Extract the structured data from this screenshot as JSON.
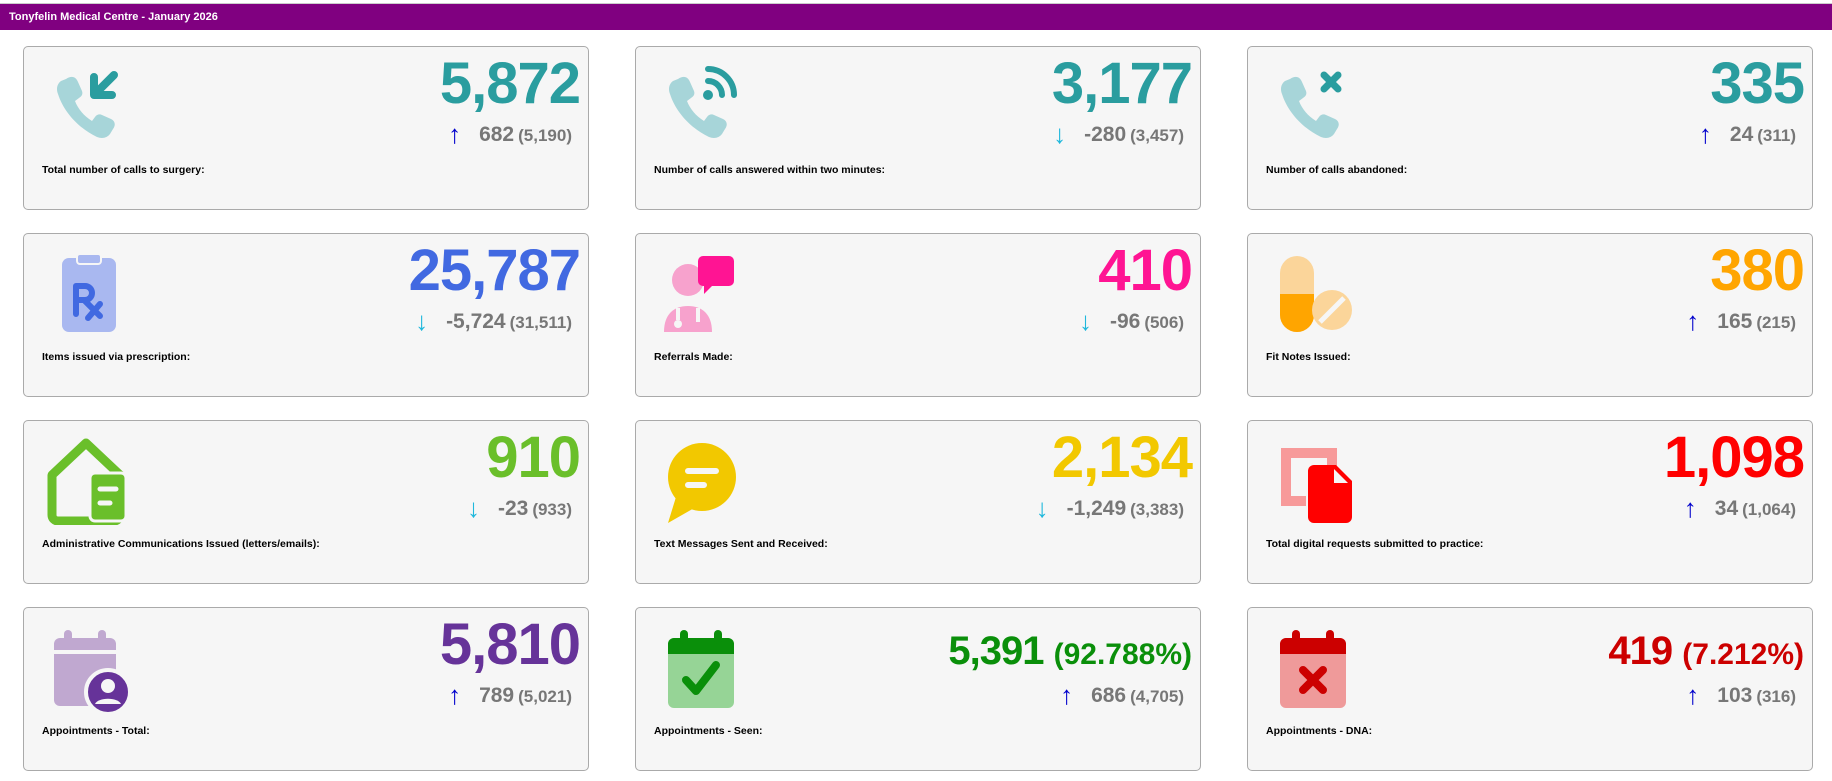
{
  "header": {
    "title": "Tonyfelin Medical Centre - January 2026"
  },
  "colors": {
    "arrow_up": "#0000cc",
    "arrow_down": "#1fb8dc",
    "header_bg": "#800080"
  },
  "cards": [
    {
      "label": "Total number of calls to surgery:",
      "value": "5,872",
      "delta": "682",
      "previous": "(5,190)",
      "trend": "up",
      "arrow": "↑",
      "icon": "phone-incoming-icon",
      "color": "#2a9d9f",
      "icon_light": "#a7d5d9"
    },
    {
      "label": "Number of calls answered within two minutes:",
      "value": "3,177",
      "delta": "-280",
      "previous": "(3,457)",
      "trend": "down",
      "arrow": "↓",
      "icon": "phone-answered-icon",
      "color": "#2a9d9f",
      "icon_light": "#a7d5d9"
    },
    {
      "label": "Number of calls abandoned:",
      "value": "335",
      "delta": "24",
      "previous": "(311)",
      "trend": "up",
      "arrow": "↑",
      "icon": "phone-missed-icon",
      "color": "#2a9d9f",
      "icon_light": "#a7d5d9"
    },
    {
      "label": "Items issued via prescription:",
      "value": "25,787",
      "delta": "-5,724",
      "previous": "(31,511)",
      "trend": "down",
      "arrow": "↓",
      "icon": "prescription-icon",
      "color": "#4169e1",
      "icon_light": "#a9b8f0"
    },
    {
      "label": "Referrals Made:",
      "value": "410",
      "delta": "-96",
      "previous": "(506)",
      "trend": "down",
      "arrow": "↓",
      "icon": "doctor-referral-icon",
      "color": "#ff1493",
      "icon_light": "#f7a2cd"
    },
    {
      "label": "Fit Notes Issued:",
      "value": "380",
      "delta": "165",
      "previous": "(215)",
      "trend": "up",
      "arrow": "↑",
      "icon": "pills-icon",
      "color": "#ffa500",
      "icon_light": "#fbd59a"
    },
    {
      "label": "Administrative Communications Issued (letters/emails):",
      "value": "910",
      "delta": "-23",
      "previous": "(933)",
      "trend": "down",
      "arrow": "↓",
      "icon": "mailbox-icon",
      "color": "#6abf2a",
      "icon_light": "#6abf2a"
    },
    {
      "label": "Text Messages Sent and Received:",
      "value": "2,134",
      "delta": "-1,249",
      "previous": "(3,383)",
      "trend": "down",
      "arrow": "↓",
      "icon": "message-bubble-icon",
      "color": "#f2c800",
      "icon_light": "#f2c800"
    },
    {
      "label": "Total digital requests submitted to practice:",
      "value": "1,098",
      "delta": "34",
      "previous": "(1,064)",
      "trend": "up",
      "arrow": "↑",
      "icon": "digital-request-icon",
      "color": "#ff0000",
      "icon_light": "#f79a9a"
    },
    {
      "label": "Appointments - Total:",
      "value": "5,810",
      "delta": "789",
      "previous": "(5,021)",
      "trend": "up",
      "arrow": "↑",
      "icon": "calendar-user-icon",
      "color": "#663399",
      "icon_light": "#c0a8d0"
    },
    {
      "label": "Appointments - Seen:",
      "value": "5,391",
      "percent": "(92.788%)",
      "delta": "686",
      "previous": "(4,705)",
      "trend": "up",
      "arrow": "↑",
      "icon": "calendar-check-icon",
      "color": "#0a8f0a",
      "icon_light": "#96d496"
    },
    {
      "label": "Appointments - DNA:",
      "value": "419",
      "percent": "(7.212%)",
      "delta": "103",
      "previous": "(316)",
      "trend": "up",
      "arrow": "↑",
      "icon": "calendar-x-icon",
      "color": "#cc0000",
      "icon_light": "#ef9a9a"
    }
  ]
}
